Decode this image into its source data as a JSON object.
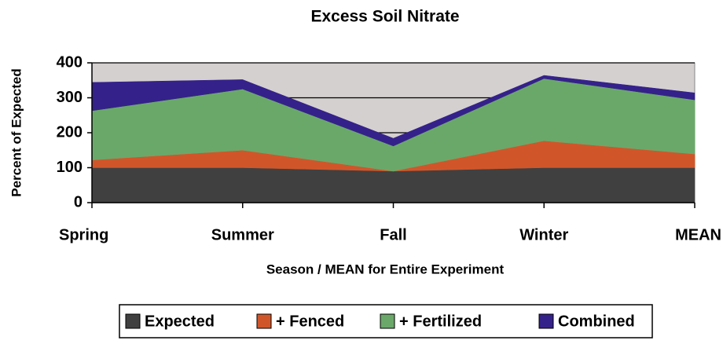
{
  "chart_data": {
    "type": "area",
    "stacked": true,
    "title": "Excess Soil Nitrate",
    "x_label": "Season / MEAN for Entire Experiment",
    "y_label": "Percent of Expected",
    "categories": [
      "Spring",
      "Summer",
      "Fall",
      "Winter",
      "MEAN"
    ],
    "series": [
      {
        "name": "Expected",
        "color": "#404040",
        "values": [
          100,
          100,
          90,
          100,
          100
        ]
      },
      {
        "name": "+ Fenced",
        "color": "#d0562a",
        "values": [
          22,
          50,
          0,
          77,
          39
        ]
      },
      {
        "name": "+ Fertilized",
        "color": "#6aa86a",
        "values": [
          141,
          175,
          72,
          178,
          155
        ]
      },
      {
        "name": "Combined",
        "color": "#35218a",
        "values": [
          81,
          27,
          22,
          9,
          20
        ]
      }
    ],
    "ylim": [
      0,
      400
    ],
    "yticks": [
      0,
      100,
      200,
      300,
      400
    ],
    "grid": true,
    "plot_background": "#d4d0cf",
    "legend": "bottom"
  }
}
